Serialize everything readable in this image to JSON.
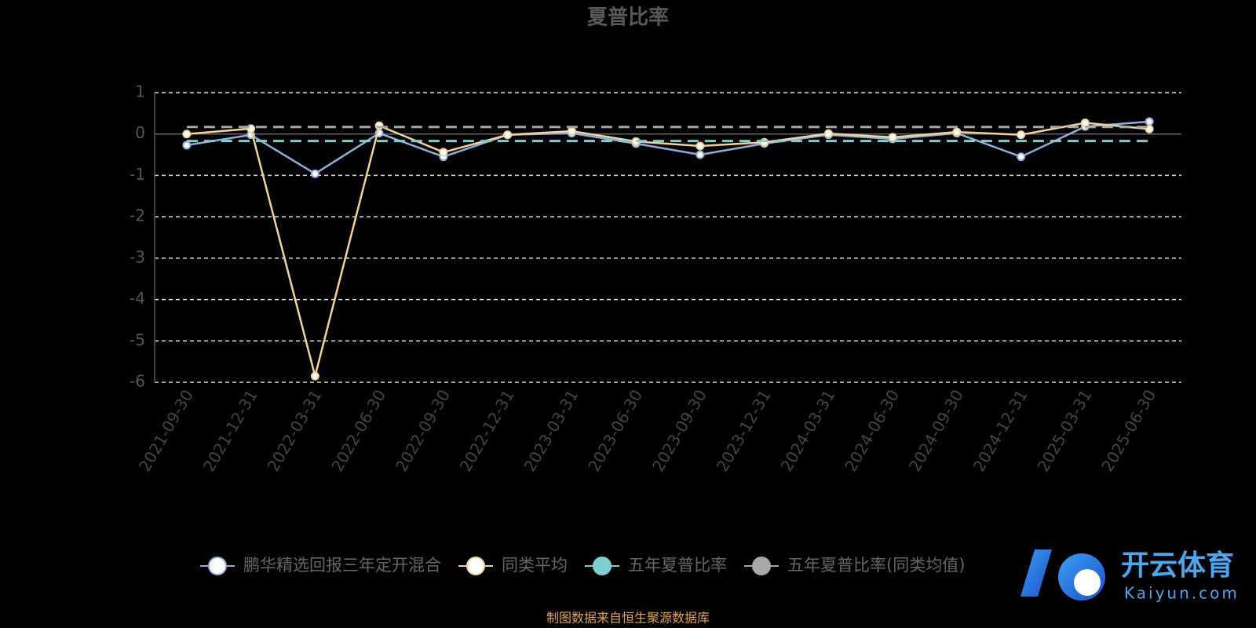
{
  "chart_data": {
    "type": "line",
    "title": "夏普比率",
    "categories": [
      "2021-09-30",
      "2021-12-31",
      "2022-03-31",
      "2022-06-30",
      "2022-09-30",
      "2022-12-31",
      "2023-03-31",
      "2023-06-30",
      "2023-09-30",
      "2023-12-31",
      "2024-03-31",
      "2024-06-30",
      "2024-09-30",
      "2024-12-31",
      "2025-03-31",
      "2025-06-30"
    ],
    "series": [
      {
        "name": "鹏华精选回报三年定开混合",
        "color": "#8eb0e0",
        "line_style": "solid",
        "values": [
          -0.27,
          -0.02,
          -0.96,
          0.02,
          -0.55,
          -0.02,
          0.02,
          -0.23,
          -0.5,
          -0.23,
          -0.02,
          -0.12,
          0.02,
          -0.55,
          0.18,
          0.3
        ]
      },
      {
        "name": "同类平均",
        "color": "#f5d393",
        "line_style": "solid",
        "values": [
          0.0,
          0.13,
          -5.85,
          0.2,
          -0.44,
          -0.02,
          0.07,
          -0.18,
          -0.29,
          -0.2,
          0.01,
          -0.08,
          0.05,
          -0.02,
          0.27,
          0.12
        ]
      },
      {
        "name": "五年夏普比率",
        "color": "#7fcfd0",
        "line_style": "dashed",
        "values": [
          -0.17,
          -0.17,
          -0.17,
          -0.17,
          -0.17,
          -0.17,
          -0.17,
          -0.17,
          -0.17,
          -0.17,
          -0.17,
          -0.17,
          -0.17,
          -0.17,
          -0.17,
          -0.17
        ]
      },
      {
        "name": "五年夏普比率(同类均值)",
        "color": "#a8a8a8",
        "line_style": "dashed",
        "values": [
          0.17,
          0.17,
          0.17,
          0.17,
          0.17,
          0.17,
          0.17,
          0.17,
          0.17,
          0.17,
          0.17,
          0.17,
          0.17,
          0.17,
          0.17,
          0.17
        ]
      }
    ],
    "ylim": [
      -6,
      1
    ],
    "yticks": [
      -6,
      -5,
      -4,
      -3,
      -2,
      -1,
      0,
      1
    ],
    "grid": true,
    "legend": "bottom",
    "source": "制图数据来自恒生聚源数据库"
  },
  "watermark": {
    "title": "开云体育",
    "subtitle": "Kaiyun.com"
  }
}
